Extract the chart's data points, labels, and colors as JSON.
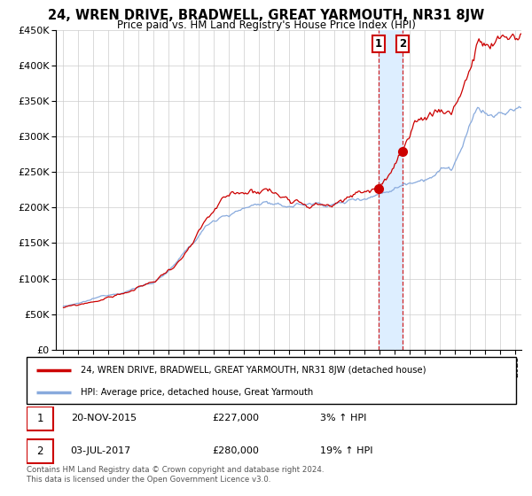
{
  "title": "24, WREN DRIVE, BRADWELL, GREAT YARMOUTH, NR31 8JW",
  "subtitle": "Price paid vs. HM Land Registry's House Price Index (HPI)",
  "ylim": [
    0,
    450000
  ],
  "yticks": [
    0,
    50000,
    100000,
    150000,
    200000,
    250000,
    300000,
    350000,
    400000,
    450000
  ],
  "xlim_start": 1994.5,
  "xlim_end": 2025.4,
  "line_color_red": "#cc0000",
  "line_color_blue": "#88aadd",
  "marker_color": "#cc0000",
  "dashed_line_color": "#cc0000",
  "shade_color": "#ddeeff",
  "transaction1_x": 2015.896,
  "transaction1_y": 227000,
  "transaction2_x": 2017.503,
  "transaction2_y": 280000,
  "legend_label_red": "24, WREN DRIVE, BRADWELL, GREAT YARMOUTH, NR31 8JW (detached house)",
  "legend_label_blue": "HPI: Average price, detached house, Great Yarmouth",
  "table_row1": [
    "1",
    "20-NOV-2015",
    "£227,000",
    "3% ↑ HPI"
  ],
  "table_row2": [
    "2",
    "03-JUL-2017",
    "£280,000",
    "19% ↑ HPI"
  ],
  "footnote": "Contains HM Land Registry data © Crown copyright and database right 2024.\nThis data is licensed under the Open Government Licence v3.0.",
  "background_color": "#ffffff",
  "grid_color": "#cccccc"
}
